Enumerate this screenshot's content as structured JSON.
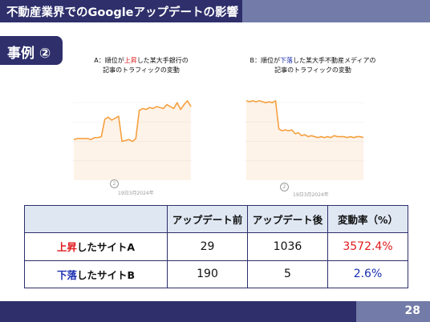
{
  "header": {
    "title": "不動産業界でのGoogleアップデートの影響"
  },
  "case": {
    "label": "事例 ②"
  },
  "charts": {
    "a": {
      "prefix": "A：順位が",
      "highlight": "上昇",
      "suffix": "した某大手銀行の",
      "line2": "記事のトラフィックの変動",
      "date_label": "19日3月2024年",
      "marker": "2",
      "color": "#f5a040"
    },
    "b": {
      "prefix": "B：順位が",
      "highlight": "下落",
      "suffix": "した某大手不動産メディアの",
      "line2": "記事のトラフィックの変動",
      "date_label": "19日3月2024年",
      "marker": "2",
      "color": "#f5a040"
    }
  },
  "chart_data": [
    {
      "type": "line",
      "series": [
        {
          "values": [
            42,
            43,
            43,
            43,
            43,
            42,
            44,
            44,
            45,
            63,
            65,
            62,
            64,
            66,
            40,
            41,
            42,
            40,
            43,
            72,
            74,
            73,
            75,
            74,
            76,
            75,
            74,
            78,
            76,
            74,
            80,
            73,
            78,
            82,
            76
          ]
        }
      ],
      "ylim": [
        0,
        100
      ]
    },
    {
      "type": "line",
      "series": [
        {
          "values": [
            82,
            81,
            82,
            81,
            82,
            81,
            80,
            81,
            80,
            82,
            53,
            51,
            52,
            51,
            52,
            48,
            49,
            46,
            47,
            45,
            46,
            45,
            44,
            45,
            44,
            45,
            44,
            46,
            45,
            45,
            45,
            44,
            45,
            44,
            45,
            45,
            44
          ]
        }
      ],
      "ylim": [
        0,
        100
      ]
    }
  ],
  "table": {
    "headers": [
      "",
      "アップデート前",
      "アップデート後",
      "変動率（%）"
    ],
    "rows": [
      {
        "label_hl": "上昇",
        "label_rest": "したサイトA",
        "before": "29",
        "after": "1036",
        "rate": "3572.4%"
      },
      {
        "label_hl": "下落",
        "label_rest": "したサイトB",
        "before": "190",
        "after": "5",
        "rate": "2.6%"
      }
    ]
  },
  "footer": {
    "page": "28"
  },
  "colors": {
    "navy": "#2e2f6b",
    "slate": "#737ca8",
    "up": "#e0191c",
    "down": "#1a2fb0",
    "header_bg": "#dfe7f3"
  }
}
